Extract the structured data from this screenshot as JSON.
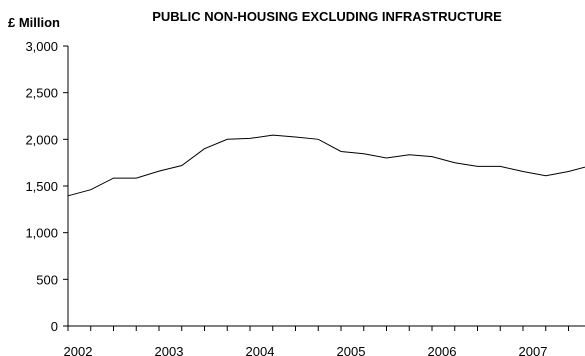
{
  "chart_data": {
    "type": "line",
    "title": "PUBLIC NON-HOUSING EXCLUDING INFRASTRUCTURE",
    "ylabel": "£ Million",
    "xlabel": "",
    "ylim": [
      0,
      3000
    ],
    "yticks": [
      0,
      500,
      1000,
      1500,
      2000,
      2500,
      3000
    ],
    "ytick_labels": [
      "0",
      "500",
      "1,000",
      "1,500",
      "2,000",
      "2,500",
      "3,000"
    ],
    "xlim": [
      2002,
      2007.75
    ],
    "xticks": [
      2002,
      2003,
      2004,
      2005,
      2006,
      2007
    ],
    "xtick_labels": [
      "2002",
      "2003",
      "2004",
      "2005",
      "2006",
      "2007"
    ],
    "grid": false,
    "legend": "none",
    "line_color": "#000000",
    "series": [
      {
        "x": [
          2002.0,
          2002.25,
          2002.5,
          2002.75,
          2003.0,
          2003.25,
          2003.5,
          2003.75,
          2004.0,
          2004.25,
          2004.5,
          2004.75,
          2005.0,
          2005.25,
          2005.5,
          2005.75,
          2006.0,
          2006.25,
          2006.5,
          2006.75,
          2007.0,
          2007.25,
          2007.5,
          2007.75
        ],
        "values": [
          1395,
          1460,
          1585,
          1585,
          1660,
          1720,
          1900,
          2000,
          2010,
          2045,
          2025,
          2000,
          1870,
          1845,
          1800,
          1835,
          1815,
          1750,
          1710,
          1710,
          1655,
          1610,
          1655,
          1720
        ]
      }
    ]
  }
}
